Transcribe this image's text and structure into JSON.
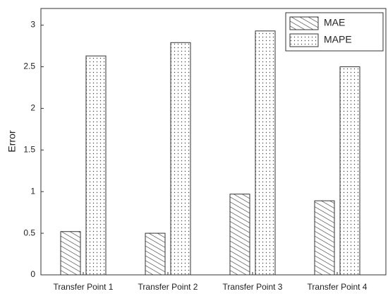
{
  "chart_data": {
    "type": "bar",
    "ylabel": "Error",
    "categories": [
      "Transfer Point 1",
      "Transfer Point 2",
      "Transfer Point 3",
      "Transfer Point 4"
    ],
    "series": [
      {
        "name": "MAE",
        "color": "#333333",
        "values": [
          0.52,
          0.5,
          0.97,
          0.89
        ]
      },
      {
        "name": "MAPE",
        "color": "#333333",
        "values": [
          2.63,
          2.79,
          2.93,
          2.5
        ]
      }
    ],
    "ylim": [
      0,
      3.2
    ],
    "yticks": [
      0,
      0.5,
      1,
      1.5,
      2,
      2.5,
      3
    ],
    "legend": "upper right"
  }
}
